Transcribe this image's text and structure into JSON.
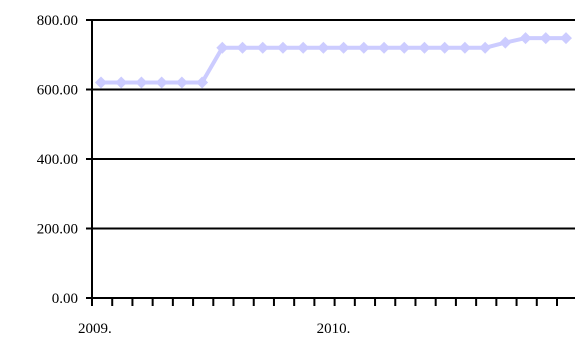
{
  "chart_data": {
    "type": "line",
    "title": "",
    "xlabel": "",
    "ylabel": "",
    "ylim": [
      0,
      800
    ],
    "yticks": [
      "0.00",
      "200.00",
      "400.00",
      "600.00",
      "800.00"
    ],
    "x": [
      "2009-01",
      "2009-02",
      "2009-03",
      "2009-04",
      "2009-05",
      "2009-06",
      "2009-07",
      "2009-08",
      "2009-09",
      "2009-10",
      "2009-11",
      "2009-12",
      "2010-01",
      "2010-02",
      "2010-03",
      "2010-04",
      "2010-05",
      "2010-06",
      "2010-07",
      "2010-08",
      "2010-09",
      "2010-10",
      "2010-11",
      "2010-12"
    ],
    "xtick_labels": [
      {
        "index": 0,
        "label": "2009."
      },
      {
        "index": 12,
        "label": "2010."
      }
    ],
    "series": [
      {
        "color": "#ccccff",
        "values": [
          620,
          620,
          620,
          620,
          620,
          620,
          720,
          720,
          720,
          720,
          720,
          720,
          720,
          720,
          720,
          720,
          720,
          720,
          720,
          720,
          735,
          748,
          748,
          748
        ]
      }
    ],
    "grid": {
      "horizontal": true,
      "vertical": false
    },
    "legend": "none"
  }
}
